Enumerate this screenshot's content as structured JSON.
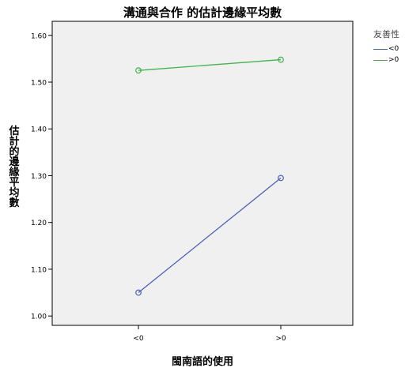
{
  "chart_data": {
    "type": "line",
    "title": "溝通與合作 的估計邊緣平均數",
    "xlabel": "閩南語的使用",
    "ylabel": "估計的邊緣平均數",
    "categories": [
      "<0",
      ">0"
    ],
    "y_ticks": [
      "1.00",
      "1.10",
      "1.20",
      "1.30",
      "1.40",
      "1.50",
      "1.60"
    ],
    "ylim": [
      0.98,
      1.63
    ],
    "grid": false,
    "legend_title": "友善性",
    "legend_placement": "right",
    "plot_background": "#f0f0f0",
    "series": [
      {
        "name": "<0",
        "color": "#4e5fb8",
        "values": [
          1.05,
          1.295
        ]
      },
      {
        "name": ">0",
        "color": "#3fb54a",
        "values": [
          1.525,
          1.548
        ]
      }
    ]
  }
}
